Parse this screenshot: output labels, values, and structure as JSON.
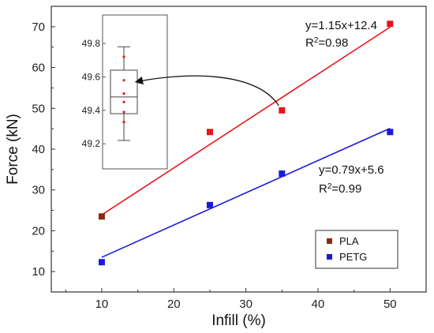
{
  "chart_data": [
    {
      "type": "scatter",
      "xlabel": "Infill (%)",
      "ylabel": "Force (kN)",
      "xlim": [
        3,
        55
      ],
      "ylim": [
        5,
        75
      ],
      "xticks": [
        10,
        20,
        30,
        40,
        50
      ],
      "yticks": [
        10,
        20,
        30,
        40,
        50,
        60,
        70
      ],
      "legend_position": "bottom-right",
      "series": [
        {
          "name": "PLA",
          "color": "#e8141c",
          "marker_color": "#e8141c",
          "legend_marker_color": "#8b2a12",
          "x": [
            10,
            25,
            35,
            50
          ],
          "y": [
            23.5,
            44.2,
            49.5,
            70.7
          ],
          "fit": {
            "slope": 1.15,
            "intercept": 12.4,
            "x_range": [
              10,
              50
            ]
          },
          "equation": "y=1.15x+12.4",
          "r2_prefix": "R",
          "r2_sup": "2",
          "r2_value": "=0.98"
        },
        {
          "name": "PETG",
          "color": "#1a1adc",
          "marker_color": "#1a1adc",
          "legend_marker_color": "#1a1adc",
          "x": [
            10,
            25,
            35,
            50
          ],
          "y": [
            12.3,
            26.3,
            34.0,
            44.2
          ],
          "fit": {
            "slope": 0.79,
            "intercept": 5.6,
            "x_range": [
              10,
              50
            ]
          },
          "equation": "y=0.79x+5.6",
          "r2_prefix": "R",
          "r2_sup": "2",
          "r2_value": "=0.99"
        }
      ]
    },
    {
      "type": "box",
      "yticks": [
        49.2,
        49.4,
        49.6,
        49.8
      ],
      "ylim": [
        49.05,
        49.97
      ],
      "box": {
        "whisker_low": 49.22,
        "q1": 49.38,
        "median": 49.48,
        "q3": 49.64,
        "whisker_high": 49.78
      },
      "points": [
        49.72,
        49.58,
        49.5,
        49.45,
        49.39,
        49.33
      ],
      "points_color": "#e8141c",
      "annotation": "arrow from PLA point at 35% infill to box"
    }
  ]
}
